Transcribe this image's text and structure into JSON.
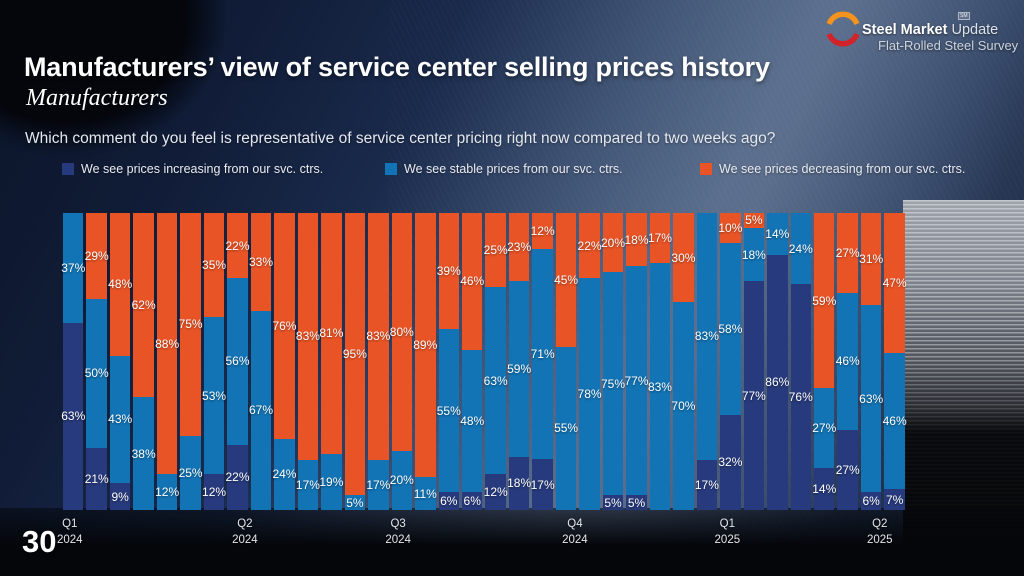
{
  "slide": {
    "page_number": "30",
    "title": "Manufacturers’ view of service center selling prices history",
    "subtitle": "Manufacturers",
    "question": "Which comment do you feel is representative of service center pricing right now compared to two weeks ago?"
  },
  "logo": {
    "brand_bold": "Steel Market",
    "brand_light": " Update",
    "tagline": "Flat-Rolled Steel Survey",
    "trademark": "SM",
    "arc_top_color": "#f6921e",
    "arc_bottom_color": "#d2232a"
  },
  "legend": [
    {
      "key": "increasing",
      "label": "We see prices increasing from our svc. ctrs.",
      "color": "#273a7d"
    },
    {
      "key": "stable",
      "label": "We see stable prices from our svc. ctrs.",
      "color": "#1274b5"
    },
    {
      "key": "decreasing",
      "label": "We see prices decreasing from our svc. ctrs.",
      "color": "#e95426"
    }
  ],
  "chart_data": {
    "type": "bar",
    "variant": "100%-stacked-column",
    "title": "Manufacturers’ view of service center selling prices history",
    "ylim": [
      0,
      100
    ],
    "value_suffix": "%",
    "grid": false,
    "legend_position": "top",
    "stack_order_bottom_to_top": [
      "increasing",
      "stable",
      "decreasing"
    ],
    "series": [
      {
        "key": "increasing",
        "name": "We see prices increasing from our svc. ctrs.",
        "color": "#273a7d",
        "values": [
          63,
          21,
          9,
          0,
          0,
          0,
          12,
          22,
          0,
          0,
          0,
          0,
          0,
          0,
          0,
          0,
          6,
          6,
          12,
          18,
          17,
          0,
          0,
          5,
          5,
          0,
          0,
          17,
          32,
          77,
          86,
          76,
          14,
          27,
          6,
          7
        ]
      },
      {
        "key": "stable",
        "name": "We see stable prices from our svc. ctrs.",
        "color": "#1274b5",
        "values": [
          37,
          50,
          43,
          38,
          12,
          25,
          53,
          56,
          67,
          24,
          17,
          19,
          5,
          17,
          20,
          11,
          55,
          48,
          63,
          59,
          71,
          55,
          78,
          75,
          77,
          83,
          70,
          83,
          58,
          18,
          14,
          24,
          27,
          46,
          63,
          46
        ]
      },
      {
        "key": "decreasing",
        "name": "We see prices decreasing from our svc. ctrs.",
        "color": "#e95426",
        "values": [
          0,
          29,
          48,
          62,
          88,
          75,
          35,
          22,
          33,
          76,
          83,
          81,
          95,
          83,
          80,
          89,
          39,
          46,
          25,
          23,
          12,
          45,
          22,
          20,
          18,
          17,
          30,
          0,
          10,
          5,
          0,
          0,
          59,
          27,
          31,
          47
        ]
      }
    ],
    "x_axis": [
      {
        "quarter": "Q1",
        "year": "2024",
        "pos_pct": 0.8
      },
      {
        "quarter": "Q2",
        "year": "2024",
        "pos_pct": 21.6
      },
      {
        "quarter": "Q3",
        "year": "2024",
        "pos_pct": 39.8
      },
      {
        "quarter": "Q4",
        "year": "2024",
        "pos_pct": 60.8
      },
      {
        "quarter": "Q1",
        "year": "2025",
        "pos_pct": 78.9
      },
      {
        "quarter": "Q2",
        "year": "2025",
        "pos_pct": 97.0
      }
    ]
  }
}
